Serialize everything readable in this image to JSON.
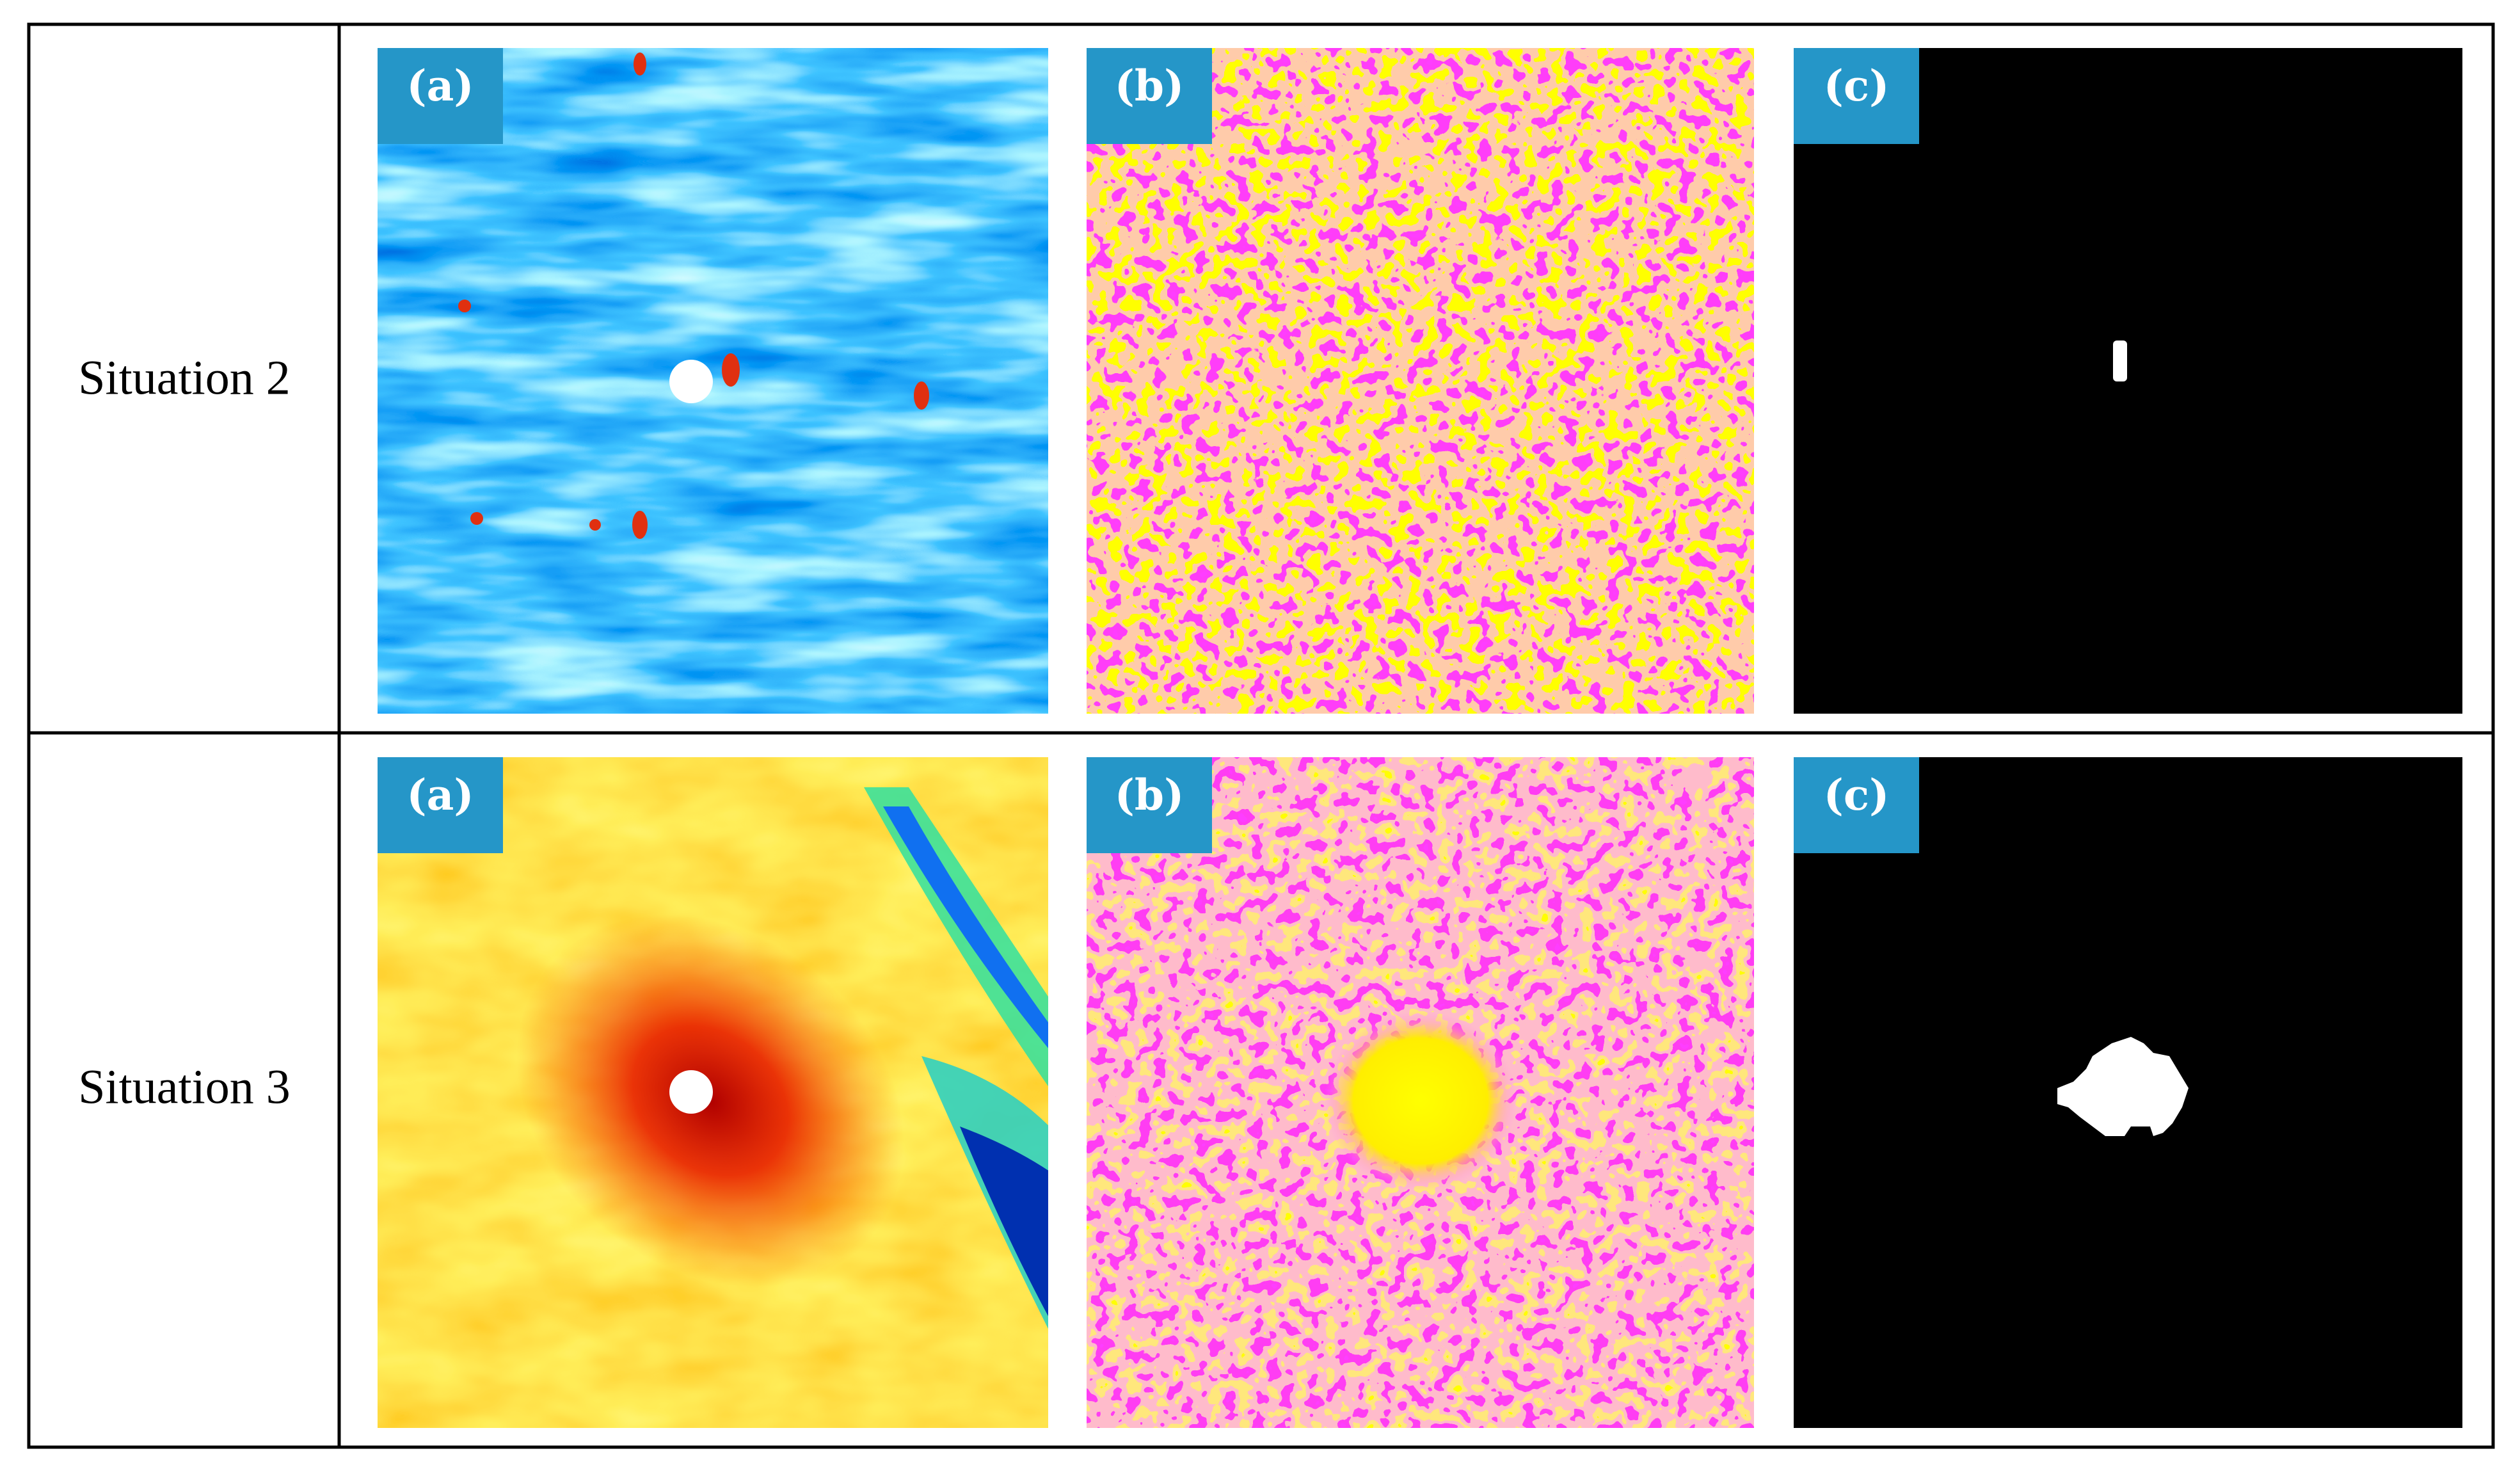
{
  "rows": [
    {
      "label": "Situation 2",
      "panels": [
        "(a)",
        "(b)",
        "(c)"
      ]
    },
    {
      "label": "Situation 3",
      "panels": [
        "(a)",
        "(b)",
        "(c)"
      ]
    }
  ]
}
